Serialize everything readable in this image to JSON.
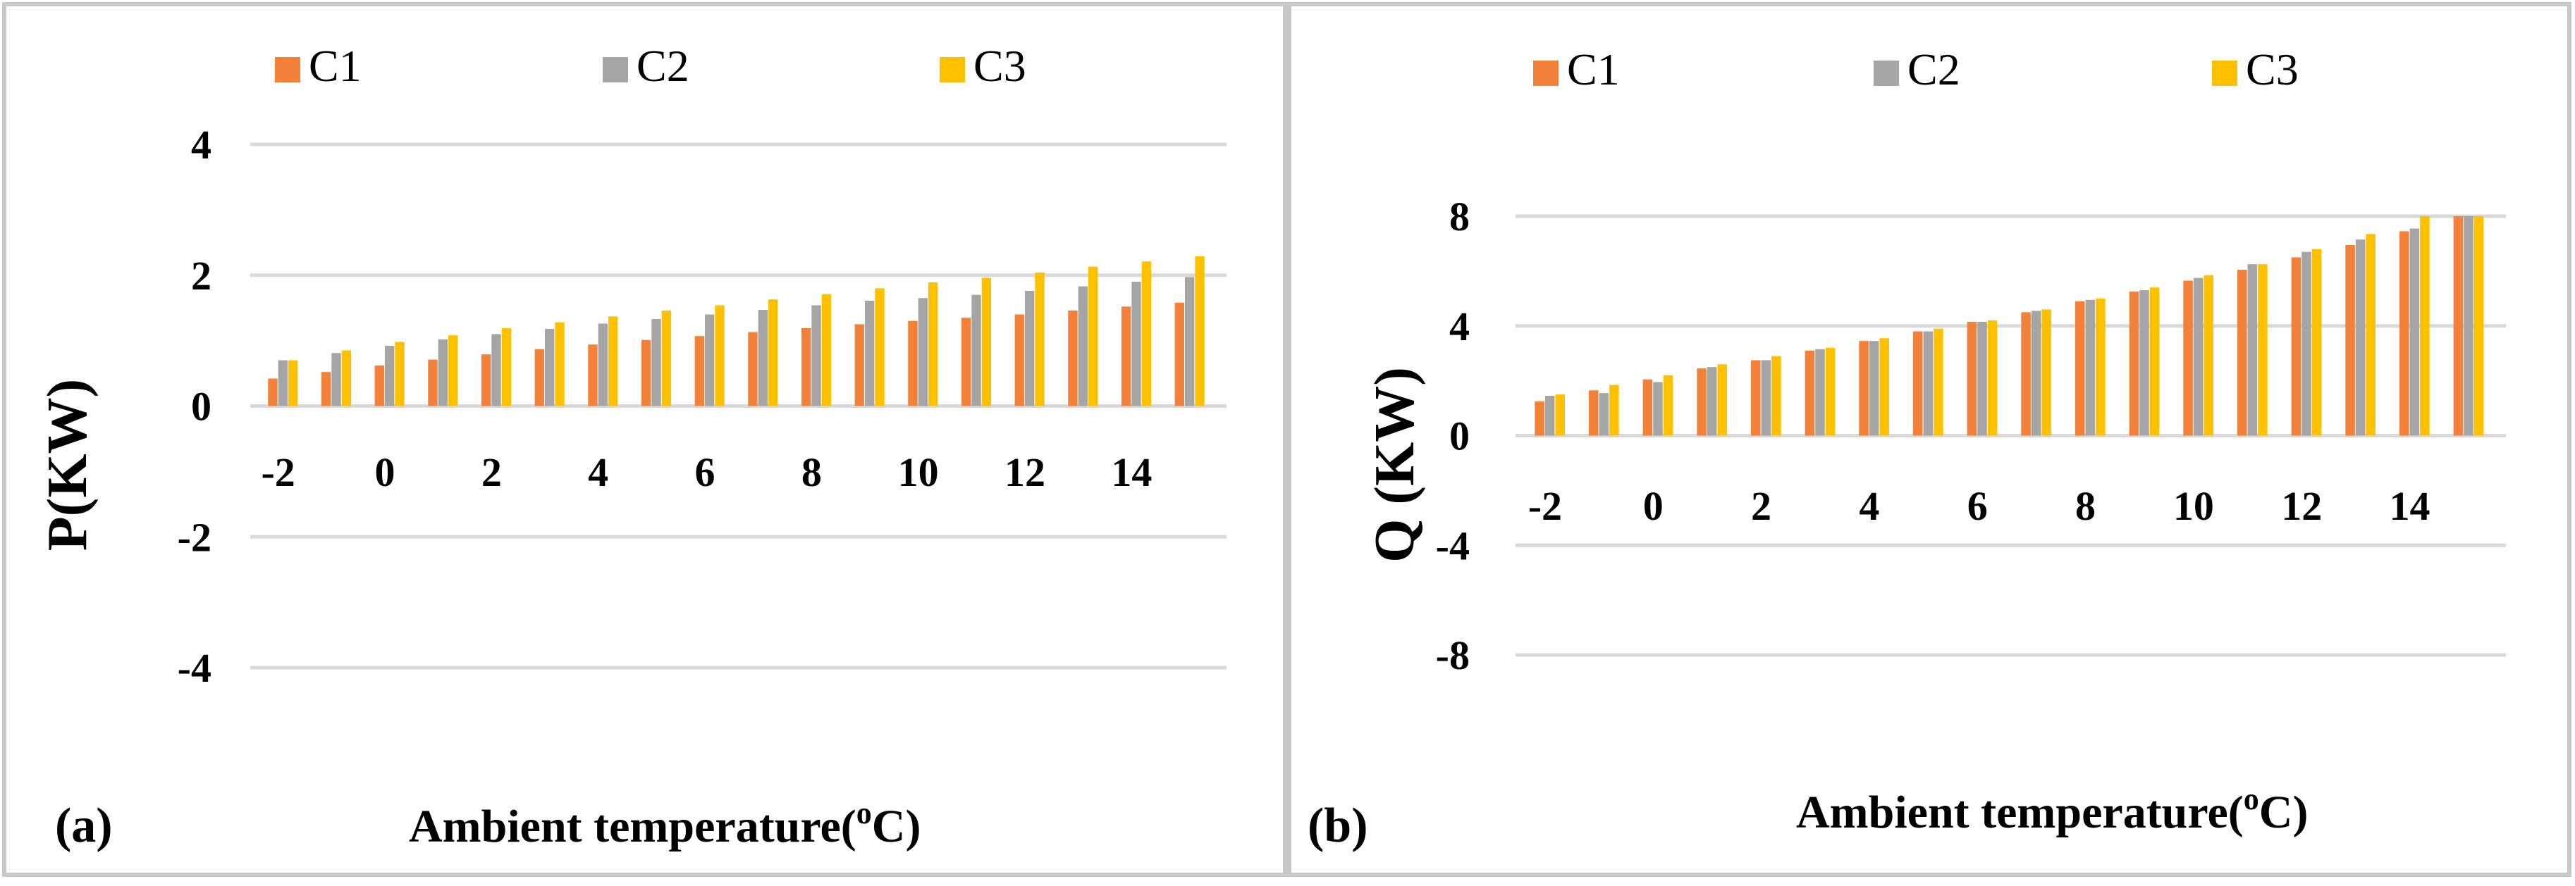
{
  "colors": {
    "C1": "#F4813A",
    "C2": "#A5A5A5",
    "C3": "#FFC000",
    "grid": "#D9D9D9",
    "frame": "#C8C8C8"
  },
  "chart_data": [
    {
      "type": "bar",
      "panel_label": "(a)",
      "xlabel_main": "Ambient temperature(",
      "xlabel_sup": "o",
      "xlabel_end": "C)",
      "ylabel": "P(KW)",
      "ylim": [
        -4,
        4
      ],
      "y_ticks": [
        4,
        2,
        0,
        -2,
        -4
      ],
      "y_tick_labels": [
        "4",
        "2",
        "0",
        "-2",
        "-4"
      ],
      "categories": [
        -2,
        -1,
        0,
        1,
        2,
        3,
        4,
        5,
        6,
        7,
        8,
        9,
        10,
        11,
        12,
        13,
        14,
        15
      ],
      "x_tick_labels": [
        "-2",
        "0",
        "2",
        "4",
        "6",
        "8",
        "10",
        "12",
        "14"
      ],
      "legend": [
        "C1",
        "C2",
        "C3"
      ],
      "series": [
        {
          "name": "C1",
          "values": [
            0.42,
            0.52,
            0.62,
            0.71,
            0.79,
            0.87,
            0.94,
            1.01,
            1.07,
            1.13,
            1.19,
            1.25,
            1.3,
            1.35,
            1.4,
            1.46,
            1.52,
            1.58
          ]
        },
        {
          "name": "C2",
          "values": [
            0.7,
            0.81,
            0.92,
            1.02,
            1.1,
            1.18,
            1.26,
            1.33,
            1.4,
            1.47,
            1.54,
            1.61,
            1.65,
            1.7,
            1.76,
            1.83,
            1.9,
            1.97
          ]
        },
        {
          "name": "C3",
          "values": [
            0.7,
            0.85,
            0.98,
            1.08,
            1.19,
            1.28,
            1.37,
            1.46,
            1.54,
            1.63,
            1.71,
            1.8,
            1.89,
            1.96,
            2.04,
            2.13,
            2.21,
            2.29
          ]
        }
      ]
    },
    {
      "type": "bar",
      "panel_label": "(b)",
      "xlabel_main": "Ambient temperature(",
      "xlabel_sup": "o",
      "xlabel_end": "C)",
      "ylabel": "Q (KW)",
      "ylim": [
        -8,
        8
      ],
      "y_ticks": [
        8,
        4,
        0,
        -4,
        -8
      ],
      "y_tick_labels": [
        "8",
        "4",
        "0",
        "-4",
        "-8"
      ],
      "categories": [
        -2,
        -1,
        0,
        1,
        2,
        3,
        4,
        5,
        6,
        7,
        8,
        9,
        10,
        11,
        12,
        13,
        14,
        15
      ],
      "x_tick_labels": [
        "-2",
        "0",
        "2",
        "4",
        "6",
        "8",
        "10",
        "12",
        "14"
      ],
      "legend": [
        "C1",
        "C2",
        "C3"
      ],
      "series": [
        {
          "name": "C1",
          "values": [
            1.25,
            1.65,
            2.05,
            2.45,
            2.75,
            3.1,
            3.45,
            3.8,
            4.15,
            4.5,
            4.9,
            5.25,
            5.65,
            6.05,
            6.5,
            6.95,
            7.45,
            8.0
          ]
        },
        {
          "name": "C2",
          "values": [
            1.45,
            1.55,
            1.95,
            2.5,
            2.75,
            3.15,
            3.45,
            3.8,
            4.15,
            4.55,
            4.95,
            5.3,
            5.75,
            6.25,
            6.7,
            7.15,
            7.55,
            8.0
          ]
        },
        {
          "name": "C3",
          "values": [
            1.5,
            1.85,
            2.2,
            2.6,
            2.9,
            3.2,
            3.55,
            3.9,
            4.2,
            4.6,
            5.0,
            5.4,
            5.85,
            6.25,
            6.8,
            7.35,
            8.0,
            8.0
          ]
        }
      ]
    }
  ]
}
